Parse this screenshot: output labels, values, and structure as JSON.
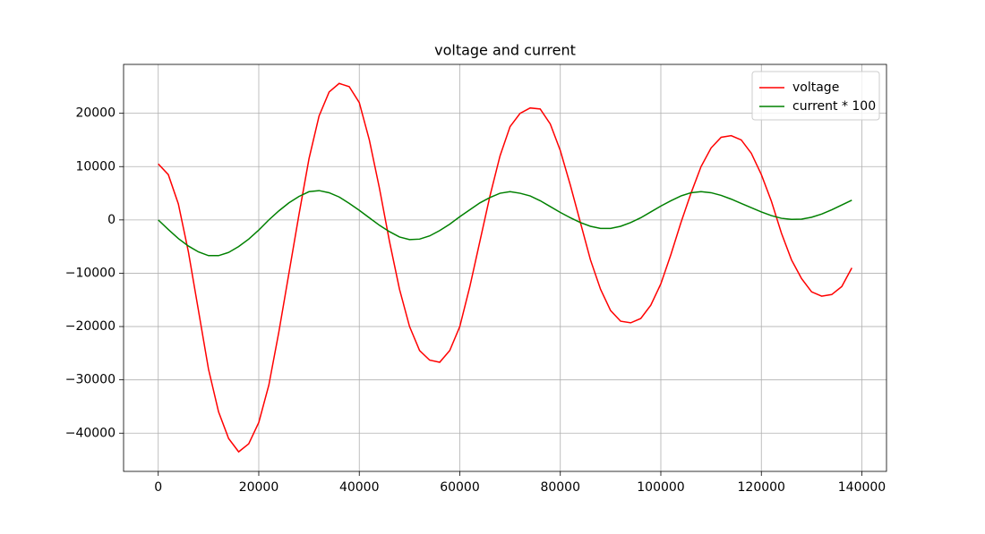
{
  "chart_data": {
    "type": "line",
    "title": "voltage and current",
    "x": [
      0,
      2000,
      4000,
      6000,
      8000,
      10000,
      12000,
      14000,
      16000,
      18000,
      20000,
      22000,
      24000,
      26000,
      28000,
      30000,
      32000,
      34000,
      36000,
      38000,
      40000,
      42000,
      44000,
      46000,
      48000,
      50000,
      52000,
      54000,
      56000,
      58000,
      60000,
      62000,
      64000,
      66000,
      68000,
      70000,
      72000,
      74000,
      76000,
      78000,
      80000,
      82000,
      84000,
      86000,
      88000,
      90000,
      92000,
      94000,
      96000,
      98000,
      100000,
      102000,
      104000,
      106000,
      108000,
      110000,
      112000,
      114000,
      116000,
      118000,
      120000,
      122000,
      124000,
      126000,
      128000,
      130000,
      132000,
      134000,
      136000,
      138000
    ],
    "series": [
      {
        "name": "voltage",
        "color": "#ff0000",
        "values": [
          10500,
          8500,
          3000,
          -6000,
          -17000,
          -28000,
          -36000,
          -41000,
          -43500,
          -42000,
          -38000,
          -31000,
          -21000,
          -10000,
          1000,
          11500,
          19500,
          24000,
          25600,
          25000,
          22000,
          15000,
          6000,
          -4000,
          -13000,
          -20000,
          -24500,
          -26300,
          -26700,
          -24500,
          -20000,
          -12500,
          -4000,
          4500,
          12000,
          17500,
          20000,
          21000,
          20800,
          18000,
          13000,
          6500,
          -500,
          -7500,
          -13000,
          -17000,
          -19000,
          -19300,
          -18500,
          -16000,
          -12000,
          -6500,
          -500,
          5000,
          10000,
          13500,
          15500,
          15800,
          15000,
          12500,
          8500,
          3500,
          -2500,
          -7500,
          -11000,
          -13500,
          -14300,
          -14000,
          -12500,
          -9000
        ]
      },
      {
        "name": "current * 100",
        "color": "#008000",
        "values": [
          0,
          -1800,
          -3500,
          -4900,
          -6000,
          -6700,
          -6700,
          -6100,
          -5000,
          -3600,
          -1900,
          0,
          1700,
          3200,
          4400,
          5300,
          5500,
          5100,
          4300,
          3100,
          1800,
          400,
          -1000,
          -2200,
          -3200,
          -3700,
          -3600,
          -3000,
          -2000,
          -800,
          600,
          1900,
          3200,
          4200,
          5000,
          5300,
          5000,
          4500,
          3600,
          2500,
          1400,
          400,
          -500,
          -1200,
          -1600,
          -1600,
          -1200,
          -500,
          400,
          1500,
          2600,
          3600,
          4500,
          5100,
          5300,
          5100,
          4600,
          3900,
          3100,
          2300,
          1500,
          800,
          300,
          100,
          150,
          500,
          1100,
          1900,
          2800,
          3700
        ]
      }
    ],
    "xlim": [
      -6900,
      144900
    ],
    "ylim": [
      -47170,
      29170
    ],
    "xticks": [
      0,
      20000,
      40000,
      60000,
      80000,
      100000,
      120000,
      140000
    ],
    "yticks": [
      {
        "value": -40000,
        "label": "−40000"
      },
      {
        "value": -30000,
        "label": "−30000"
      },
      {
        "value": -20000,
        "label": "−20000"
      },
      {
        "value": -10000,
        "label": "−10000"
      },
      0,
      10000,
      20000
    ],
    "grid": true,
    "legend": "upper right"
  }
}
